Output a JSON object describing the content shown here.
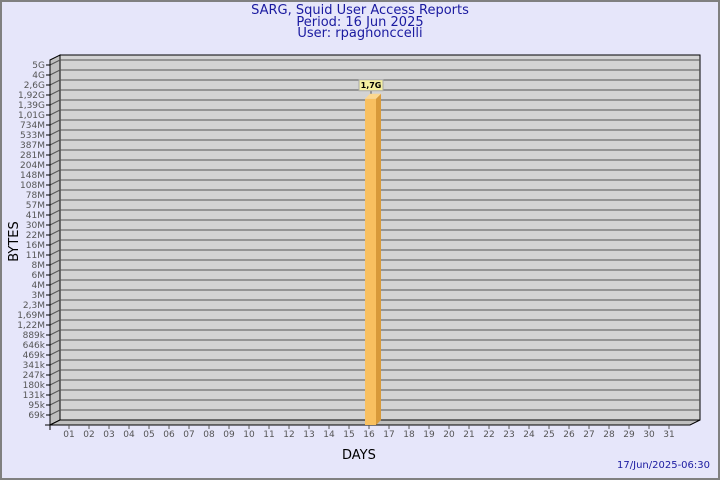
{
  "title": {
    "line1": "SARG, Squid User Access Reports",
    "line2": "Period: 16 Jun 2025",
    "line3": "User: rpagnonccelli"
  },
  "timestamp": "17/Jun/2025-06:30",
  "colors": {
    "background": "#e6e6fa",
    "plot": "#d3d3d3",
    "bar": "#f8c060",
    "bar_side": "#d89a3a",
    "title": "#1a1aa0"
  },
  "chart_data": {
    "type": "bar",
    "xlabel": "DAYS",
    "ylabel": "BYTES",
    "y_scale": "log",
    "y_ticks": [
      "5G",
      "4G",
      "2,6G",
      "1,92G",
      "1,39G",
      "1,01G",
      "734M",
      "533M",
      "387M",
      "281M",
      "204M",
      "148M",
      "108M",
      "78M",
      "57M",
      "41M",
      "30M",
      "22M",
      "16M",
      "11M",
      "8M",
      "6M",
      "4M",
      "3M",
      "2,3M",
      "1,69M",
      "1,22M",
      "889k",
      "646k",
      "469k",
      "341k",
      "247k",
      "180k",
      "131k",
      "95k",
      "69k"
    ],
    "categories": [
      "01",
      "02",
      "03",
      "04",
      "05",
      "06",
      "07",
      "08",
      "09",
      "10",
      "11",
      "12",
      "13",
      "14",
      "15",
      "16",
      "17",
      "18",
      "19",
      "20",
      "21",
      "22",
      "23",
      "24",
      "25",
      "26",
      "27",
      "28",
      "29",
      "30",
      "31"
    ],
    "values": [
      0,
      0,
      0,
      0,
      0,
      0,
      0,
      0,
      0,
      0,
      0,
      0,
      0,
      0,
      0,
      1700000000,
      0,
      0,
      0,
      0,
      0,
      0,
      0,
      0,
      0,
      0,
      0,
      0,
      0,
      0,
      0
    ],
    "data_labels": {
      "16": "1,7G"
    },
    "grid": true
  }
}
